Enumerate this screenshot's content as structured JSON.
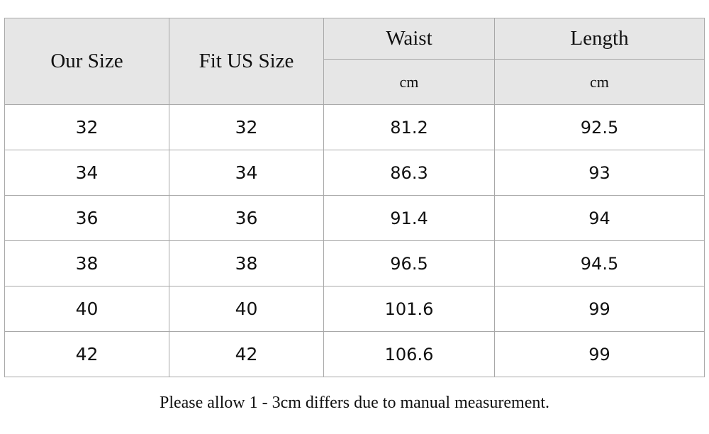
{
  "table": {
    "headers": {
      "our_size": "Our Size",
      "fit_us_size": "Fit US Size",
      "waist": "Waist",
      "length": "Length",
      "waist_unit": "cm",
      "length_unit": "cm"
    },
    "rows": [
      {
        "our_size": "32",
        "fit_us_size": "32",
        "waist": "81.2",
        "length": "92.5"
      },
      {
        "our_size": "34",
        "fit_us_size": "34",
        "waist": "86.3",
        "length": "93"
      },
      {
        "our_size": "36",
        "fit_us_size": "36",
        "waist": "91.4",
        "length": "94"
      },
      {
        "our_size": "38",
        "fit_us_size": "38",
        "waist": "96.5",
        "length": "94.5"
      },
      {
        "our_size": "40",
        "fit_us_size": "40",
        "waist": "101.6",
        "length": "99"
      },
      {
        "our_size": "42",
        "fit_us_size": "42",
        "waist": "106.6",
        "length": "99"
      }
    ]
  },
  "note": "Please allow 1 - 3cm differs due to manual measurement."
}
